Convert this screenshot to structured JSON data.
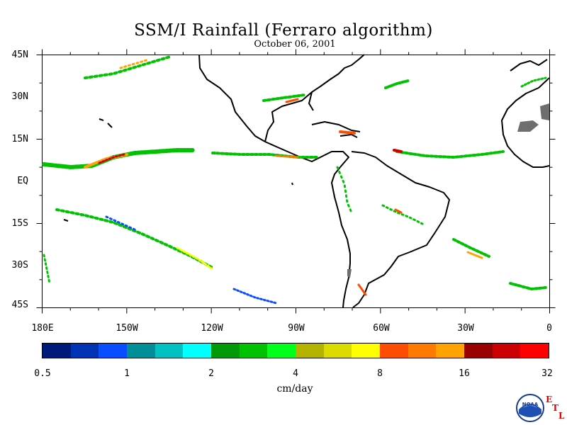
{
  "header": {
    "title": "SSM/I Rainfall (Ferraro algorithm)",
    "date": "October 06, 2001"
  },
  "map": {
    "lat_labels": [
      "45N",
      "30N",
      "15N",
      "EQ",
      "15S",
      "30S",
      "45S"
    ],
    "lon_labels": [
      "180E",
      "150W",
      "120W",
      "90W",
      "60W",
      "30W",
      "0"
    ],
    "land_color": "#ffffff",
    "coast_color": "#000000",
    "ice_or_missing_color": "#6e6e6e"
  },
  "colorbar": {
    "unit": "cm/day",
    "tick_labels": [
      "0.5",
      "1",
      "2",
      "4",
      "8",
      "16",
      "32"
    ],
    "colors": [
      "#001a7a",
      "#0033b3",
      "#0a4dff",
      "#008f99",
      "#00c2c2",
      "#00ffff",
      "#00990a",
      "#00c200",
      "#00ff1a",
      "#b3b300",
      "#dbdb00",
      "#ffff00",
      "#ff4d00",
      "#ff7a00",
      "#ffa300",
      "#990000",
      "#cc0000",
      "#ff0000"
    ]
  },
  "logo": {
    "letters": [
      "E",
      "T",
      "L"
    ],
    "agency": "NOAA"
  }
}
